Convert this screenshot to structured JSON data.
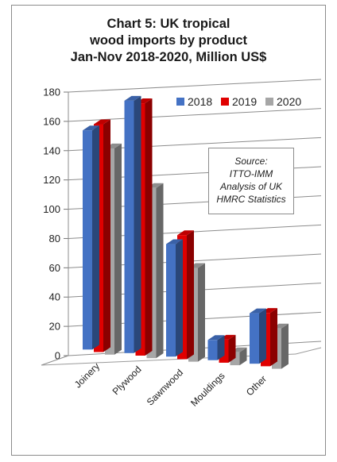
{
  "chart_data": {
    "type": "bar",
    "title_lines": [
      "Chart 5: UK tropical",
      "wood imports by product",
      "Jan-Nov 2018-2020, Million US$"
    ],
    "categories": [
      "Joinery",
      "Plywood",
      "Sawnwood",
      "Mouldings",
      "Other"
    ],
    "series": [
      {
        "name": "2018",
        "color": "#4472c4",
        "values": [
          152,
          175,
          78,
          14,
          35
        ]
      },
      {
        "name": "2019",
        "color": "#e00000",
        "values": [
          158,
          175,
          86,
          16,
          37
        ]
      },
      {
        "name": "2020",
        "color": "#a6a6a6",
        "values": [
          143,
          118,
          65,
          9,
          28
        ]
      }
    ],
    "ylim": [
      0,
      180
    ],
    "yticks": [
      0,
      20,
      40,
      60,
      80,
      100,
      120,
      140,
      160,
      180
    ],
    "grid": true,
    "legend_position": "top-right",
    "annotation_lines": [
      "Source:",
      "ITTO-IMM",
      "Analysis of UK",
      "HMRC Statistics"
    ]
  }
}
